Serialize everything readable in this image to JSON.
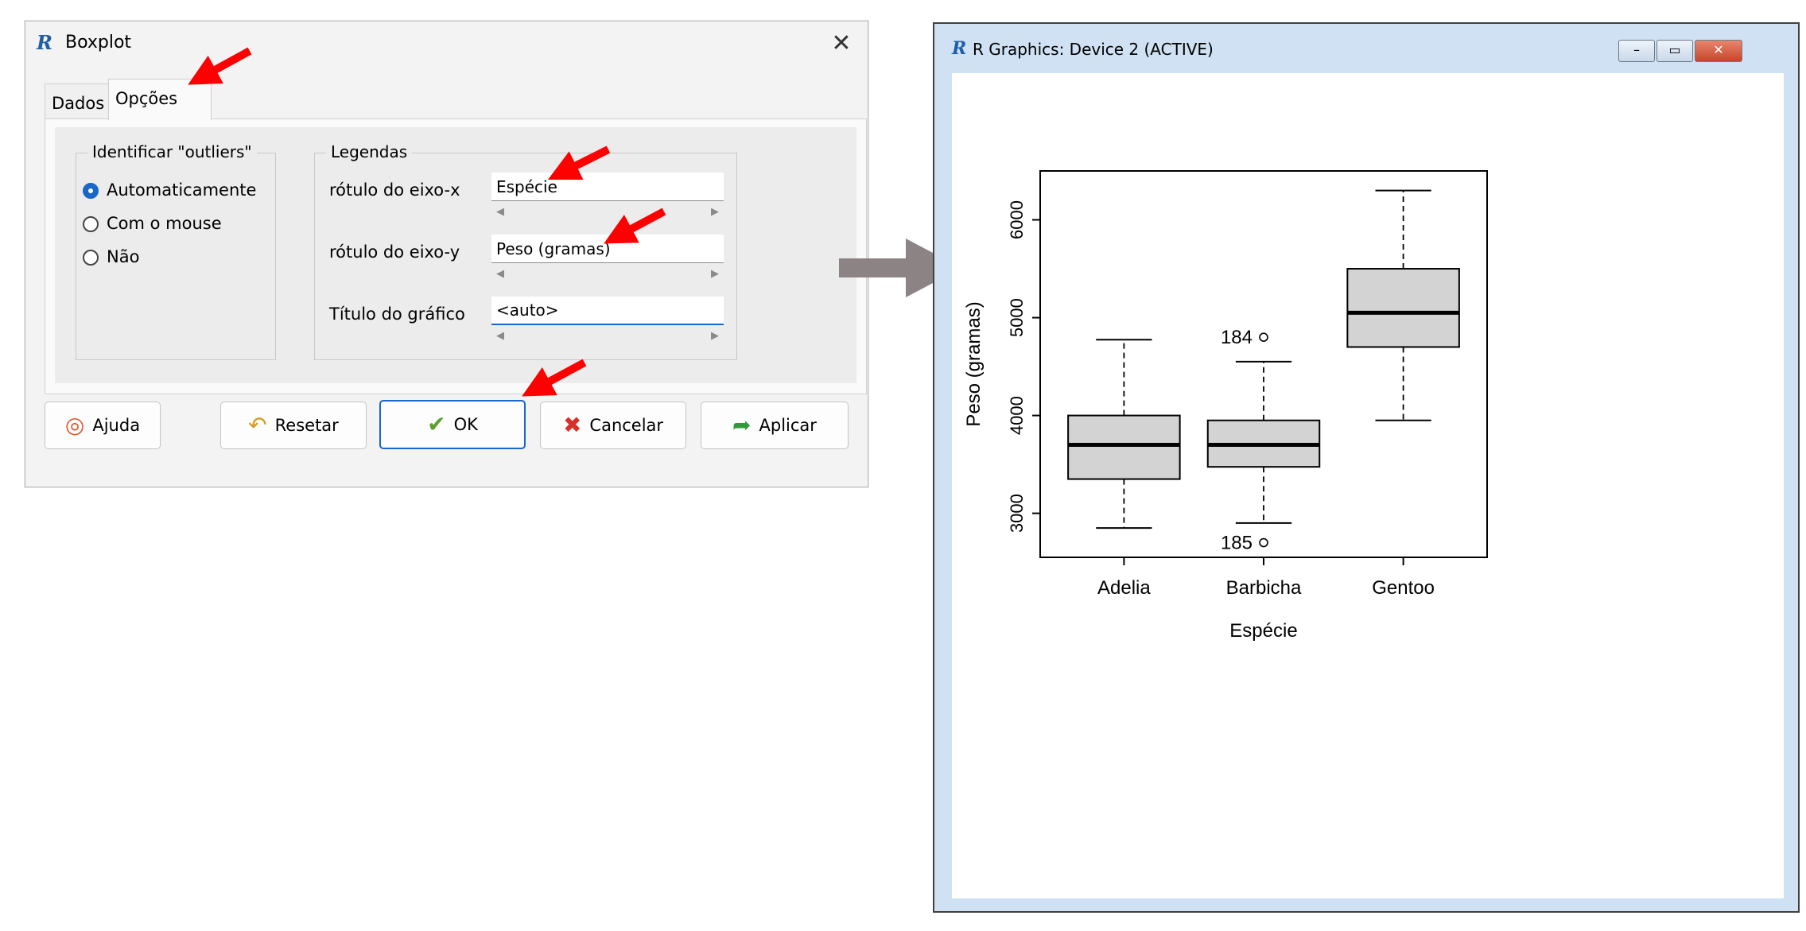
{
  "dialog": {
    "title": "Boxplot",
    "close_symbol": "✕",
    "tabs": [
      {
        "label": "Dados",
        "active": false
      },
      {
        "label": "Opções",
        "active": true
      }
    ],
    "outliers_group": {
      "legend": "Identificar \"outliers\"",
      "options": [
        {
          "label": "Automaticamente",
          "selected": true
        },
        {
          "label": "Com o mouse",
          "selected": false
        },
        {
          "label": "Não",
          "selected": false
        }
      ]
    },
    "legends_group": {
      "legend": "Legendas",
      "fields": [
        {
          "label": "rótulo do eixo-x",
          "value": "Espécie"
        },
        {
          "label": "rótulo do eixo-y",
          "value": "Peso (gramas)"
        },
        {
          "label": "Título do gráfico",
          "value": "<auto>"
        }
      ]
    },
    "buttons": [
      {
        "label": "Ajuda",
        "icon": "lifebuoy-icon"
      },
      {
        "label": "Resetar",
        "icon": "undo-arrow-icon"
      },
      {
        "label": "OK",
        "icon": "checkmark-icon"
      },
      {
        "label": "Cancelar",
        "icon": "red-x-icon"
      },
      {
        "label": "Aplicar",
        "icon": "forward-arrow-icon"
      }
    ]
  },
  "graphics_window": {
    "title": "R Graphics: Device 2 (ACTIVE)",
    "logo_letter": "R"
  },
  "colors": {
    "annotation_arrow": "#ff0000",
    "flow_arrow": "#8c8484",
    "box_fill": "#d3d3d3",
    "accent": "#1a66c9"
  },
  "chart_data": {
    "type": "boxplot",
    "title": "",
    "xlabel": "Espécie",
    "ylabel": "Peso (gramas)",
    "ylim": [
      2550,
      6500
    ],
    "yticks": [
      3000,
      4000,
      5000,
      6000
    ],
    "categories": [
      "Adelia",
      "Barbicha",
      "Gentoo"
    ],
    "boxes": [
      {
        "name": "Adelia",
        "whisker_low": 2850,
        "q1": 3350,
        "median": 3700,
        "q3": 4000,
        "whisker_high": 4775
      },
      {
        "name": "Barbicha",
        "whisker_low": 2900,
        "q1": 3475,
        "median": 3700,
        "q3": 3950,
        "whisker_high": 4550
      },
      {
        "name": "Gentoo",
        "whisker_low": 3950,
        "q1": 4700,
        "median": 5050,
        "q3": 5500,
        "whisker_high": 6300
      }
    ],
    "outliers": [
      {
        "category": "Barbicha",
        "value": 4800,
        "label": "184"
      },
      {
        "category": "Barbicha",
        "value": 2700,
        "label": "185"
      }
    ],
    "grid": false,
    "legend": "none"
  }
}
